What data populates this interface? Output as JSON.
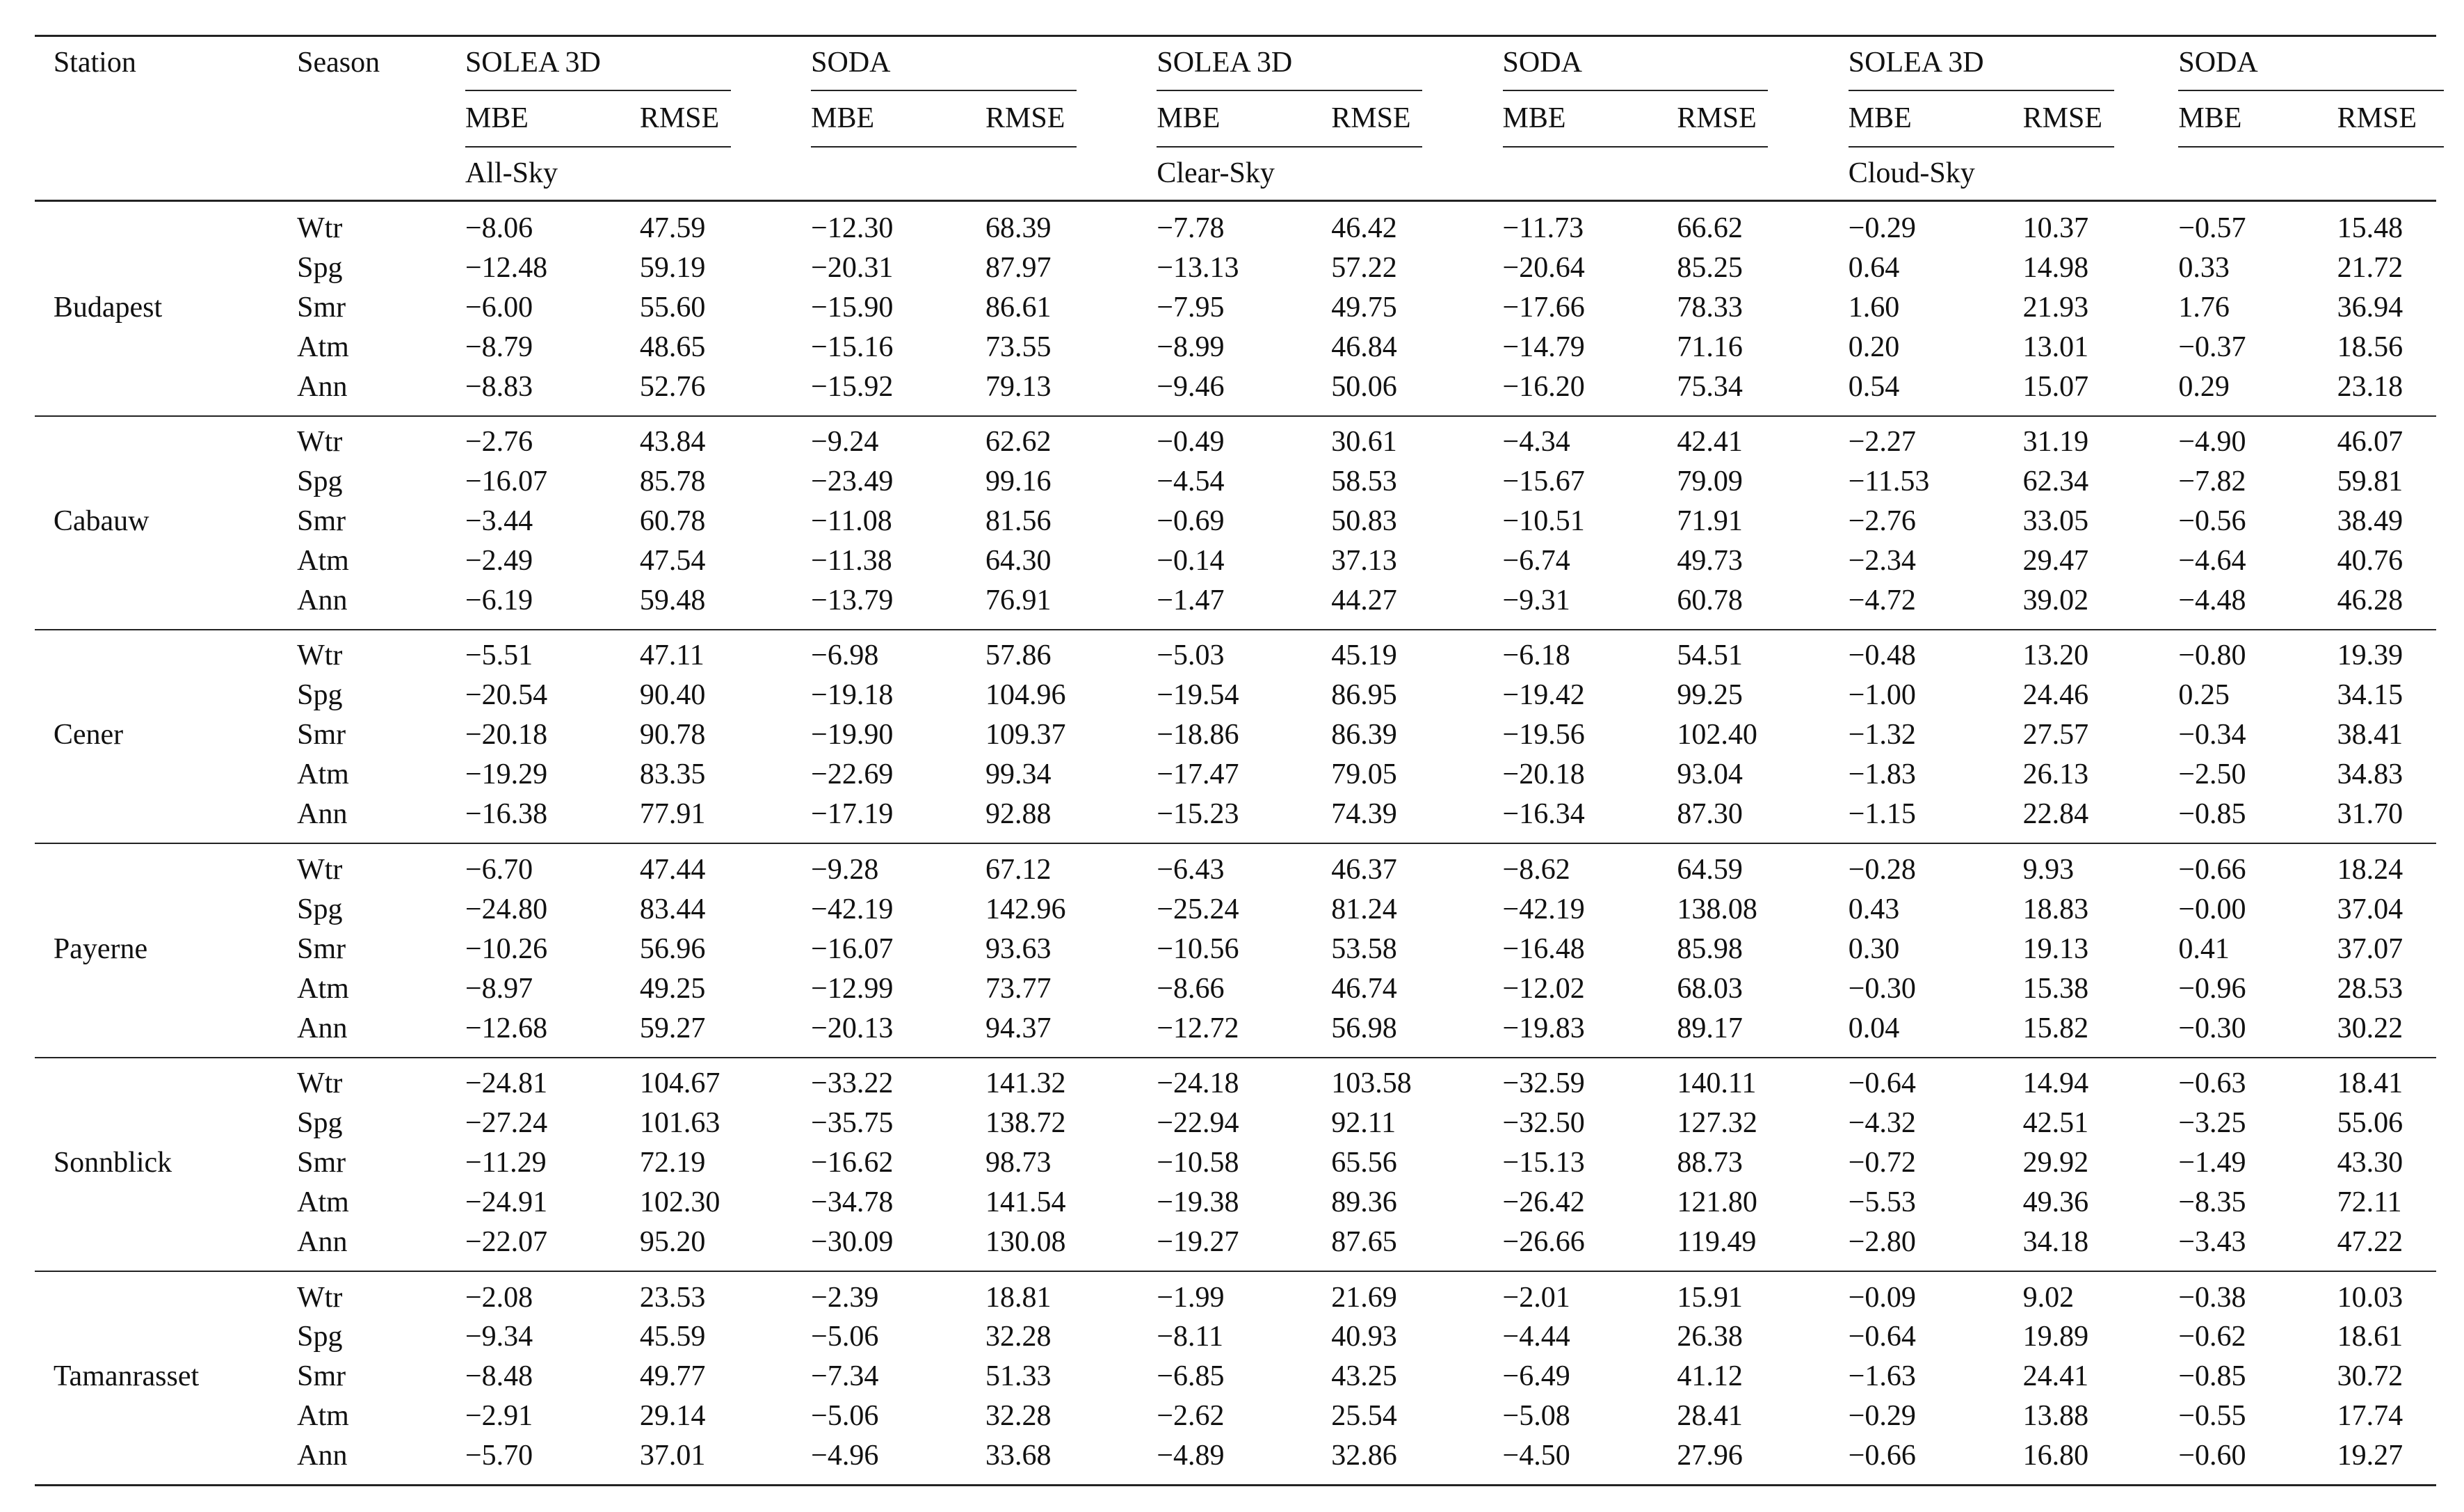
{
  "header": {
    "station": "Station",
    "season": "Season",
    "models": [
      "SOLEA 3D",
      "SODA",
      "SOLEA 3D",
      "SODA",
      "SOLEA 3D",
      "SODA"
    ],
    "metrics": [
      "MBE",
      "RMSE",
      "MBE",
      "RMSE",
      "MBE",
      "RMSE",
      "MBE",
      "RMSE",
      "MBE",
      "RMSE",
      "MBE",
      "RMSE"
    ],
    "conditions": [
      "All-Sky",
      "Clear-Sky",
      "Cloud-Sky"
    ]
  },
  "groups": [
    {
      "station": "Budapest",
      "rows": [
        {
          "season": "Wtr",
          "values": [
            "−8.06",
            "47.59",
            "−12.30",
            "68.39",
            "−7.78",
            "46.42",
            "−11.73",
            "66.62",
            "−0.29",
            "10.37",
            "−0.57",
            "15.48"
          ]
        },
        {
          "season": "Spg",
          "values": [
            "−12.48",
            "59.19",
            "−20.31",
            "87.97",
            "−13.13",
            "57.22",
            "−20.64",
            "85.25",
            "0.64",
            "14.98",
            "0.33",
            "21.72"
          ]
        },
        {
          "season": "Smr",
          "values": [
            "−6.00",
            "55.60",
            "−15.90",
            "86.61",
            "−7.95",
            "49.75",
            "−17.66",
            "78.33",
            "1.60",
            "21.93",
            "1.76",
            "36.94"
          ]
        },
        {
          "season": "Atm",
          "values": [
            "−8.79",
            "48.65",
            "−15.16",
            "73.55",
            "−8.99",
            "46.84",
            "−14.79",
            "71.16",
            "0.20",
            "13.01",
            "−0.37",
            "18.56"
          ]
        },
        {
          "season": "Ann",
          "values": [
            "−8.83",
            "52.76",
            "−15.92",
            "79.13",
            "−9.46",
            "50.06",
            "−16.20",
            "75.34",
            "0.54",
            "15.07",
            "0.29",
            "23.18"
          ]
        }
      ]
    },
    {
      "station": "Cabauw",
      "rows": [
        {
          "season": "Wtr",
          "values": [
            "−2.76",
            "43.84",
            "−9.24",
            "62.62",
            "−0.49",
            "30.61",
            "−4.34",
            "42.41",
            "−2.27",
            "31.19",
            "−4.90",
            "46.07"
          ]
        },
        {
          "season": "Spg",
          "values": [
            "−16.07",
            "85.78",
            "−23.49",
            "99.16",
            "−4.54",
            "58.53",
            "−15.67",
            "79.09",
            "−11.53",
            "62.34",
            "−7.82",
            "59.81"
          ]
        },
        {
          "season": "Smr",
          "values": [
            "−3.44",
            "60.78",
            "−11.08",
            "81.56",
            "−0.69",
            "50.83",
            "−10.51",
            "71.91",
            "−2.76",
            "33.05",
            "−0.56",
            "38.49"
          ]
        },
        {
          "season": "Atm",
          "values": [
            "−2.49",
            "47.54",
            "−11.38",
            "64.30",
            "−0.14",
            "37.13",
            "−6.74",
            "49.73",
            "−2.34",
            "29.47",
            "−4.64",
            "40.76"
          ]
        },
        {
          "season": "Ann",
          "values": [
            "−6.19",
            "59.48",
            "−13.79",
            "76.91",
            "−1.47",
            "44.27",
            "−9.31",
            "60.78",
            "−4.72",
            "39.02",
            "−4.48",
            "46.28"
          ]
        }
      ]
    },
    {
      "station": "Cener",
      "rows": [
        {
          "season": "Wtr",
          "values": [
            "−5.51",
            "47.11",
            "−6.98",
            "57.86",
            "−5.03",
            "45.19",
            "−6.18",
            "54.51",
            "−0.48",
            "13.20",
            "−0.80",
            "19.39"
          ]
        },
        {
          "season": "Spg",
          "values": [
            "−20.54",
            "90.40",
            "−19.18",
            "104.96",
            "−19.54",
            "86.95",
            "−19.42",
            "99.25",
            "−1.00",
            "24.46",
            "0.25",
            "34.15"
          ]
        },
        {
          "season": "Smr",
          "values": [
            "−20.18",
            "90.78",
            "−19.90",
            "109.37",
            "−18.86",
            "86.39",
            "−19.56",
            "102.40",
            "−1.32",
            "27.57",
            "−0.34",
            "38.41"
          ]
        },
        {
          "season": "Atm",
          "values": [
            "−19.29",
            "83.35",
            "−22.69",
            "99.34",
            "−17.47",
            "79.05",
            "−20.18",
            "93.04",
            "−1.83",
            "26.13",
            "−2.50",
            "34.83"
          ]
        },
        {
          "season": "Ann",
          "values": [
            "−16.38",
            "77.91",
            "−17.19",
            "92.88",
            "−15.23",
            "74.39",
            "−16.34",
            "87.30",
            "−1.15",
            "22.84",
            "−0.85",
            "31.70"
          ]
        }
      ]
    },
    {
      "station": "Payerne",
      "rows": [
        {
          "season": "Wtr",
          "values": [
            "−6.70",
            "47.44",
            "−9.28",
            "67.12",
            "−6.43",
            "46.37",
            "−8.62",
            "64.59",
            "−0.28",
            "9.93",
            "−0.66",
            "18.24"
          ]
        },
        {
          "season": "Spg",
          "values": [
            "−24.80",
            "83.44",
            "−42.19",
            "142.96",
            "−25.24",
            "81.24",
            "−42.19",
            "138.08",
            "0.43",
            "18.83",
            "−0.00",
            "37.04"
          ]
        },
        {
          "season": "Smr",
          "values": [
            "−10.26",
            "56.96",
            "−16.07",
            "93.63",
            "−10.56",
            "53.58",
            "−16.48",
            "85.98",
            "0.30",
            "19.13",
            "0.41",
            "37.07"
          ]
        },
        {
          "season": "Atm",
          "values": [
            "−8.97",
            "49.25",
            "−12.99",
            "73.77",
            "−8.66",
            "46.74",
            "−12.02",
            "68.03",
            "−0.30",
            "15.38",
            "−0.96",
            "28.53"
          ]
        },
        {
          "season": "Ann",
          "values": [
            "−12.68",
            "59.27",
            "−20.13",
            "94.37",
            "−12.72",
            "56.98",
            "−19.83",
            "89.17",
            "0.04",
            "15.82",
            "−0.30",
            "30.22"
          ]
        }
      ]
    },
    {
      "station": "Sonnblick",
      "rows": [
        {
          "season": "Wtr",
          "values": [
            "−24.81",
            "104.67",
            "−33.22",
            "141.32",
            "−24.18",
            "103.58",
            "−32.59",
            "140.11",
            "−0.64",
            "14.94",
            "−0.63",
            "18.41"
          ]
        },
        {
          "season": "Spg",
          "values": [
            "−27.24",
            "101.63",
            "−35.75",
            "138.72",
            "−22.94",
            "92.11",
            "−32.50",
            "127.32",
            "−4.32",
            "42.51",
            "−3.25",
            "55.06"
          ]
        },
        {
          "season": "Smr",
          "values": [
            "−11.29",
            "72.19",
            "−16.62",
            "98.73",
            "−10.58",
            "65.56",
            "−15.13",
            "88.73",
            "−0.72",
            "29.92",
            "−1.49",
            "43.30"
          ]
        },
        {
          "season": "Atm",
          "values": [
            "−24.91",
            "102.30",
            "−34.78",
            "141.54",
            "−19.38",
            "89.36",
            "−26.42",
            "121.80",
            "−5.53",
            "49.36",
            "−8.35",
            "72.11"
          ]
        },
        {
          "season": "Ann",
          "values": [
            "−22.07",
            "95.20",
            "−30.09",
            "130.08",
            "−19.27",
            "87.65",
            "−26.66",
            "119.49",
            "−2.80",
            "34.18",
            "−3.43",
            "47.22"
          ]
        }
      ]
    },
    {
      "station": "Tamanrasset",
      "rows": [
        {
          "season": "Wtr",
          "values": [
            "−2.08",
            "23.53",
            "−2.39",
            "18.81",
            "−1.99",
            "21.69",
            "−2.01",
            "15.91",
            "−0.09",
            "9.02",
            "−0.38",
            "10.03"
          ]
        },
        {
          "season": "Spg",
          "values": [
            "−9.34",
            "45.59",
            "−5.06",
            "32.28",
            "−8.11",
            "40.93",
            "−4.44",
            "26.38",
            "−0.64",
            "19.89",
            "−0.62",
            "18.61"
          ]
        },
        {
          "season": "Smr",
          "values": [
            "−8.48",
            "49.77",
            "−7.34",
            "51.33",
            "−6.85",
            "43.25",
            "−6.49",
            "41.12",
            "−1.63",
            "24.41",
            "−0.85",
            "30.72"
          ]
        },
        {
          "season": "Atm",
          "values": [
            "−2.91",
            "29.14",
            "−5.06",
            "32.28",
            "−2.62",
            "25.54",
            "−5.08",
            "28.41",
            "−0.29",
            "13.88",
            "−0.55",
            "17.74"
          ]
        },
        {
          "season": "Ann",
          "values": [
            "−5.70",
            "37.01",
            "−4.96",
            "33.68",
            "−4.89",
            "32.86",
            "−4.50",
            "27.96",
            "−0.66",
            "16.80",
            "−0.60",
            "19.27"
          ]
        }
      ]
    }
  ]
}
